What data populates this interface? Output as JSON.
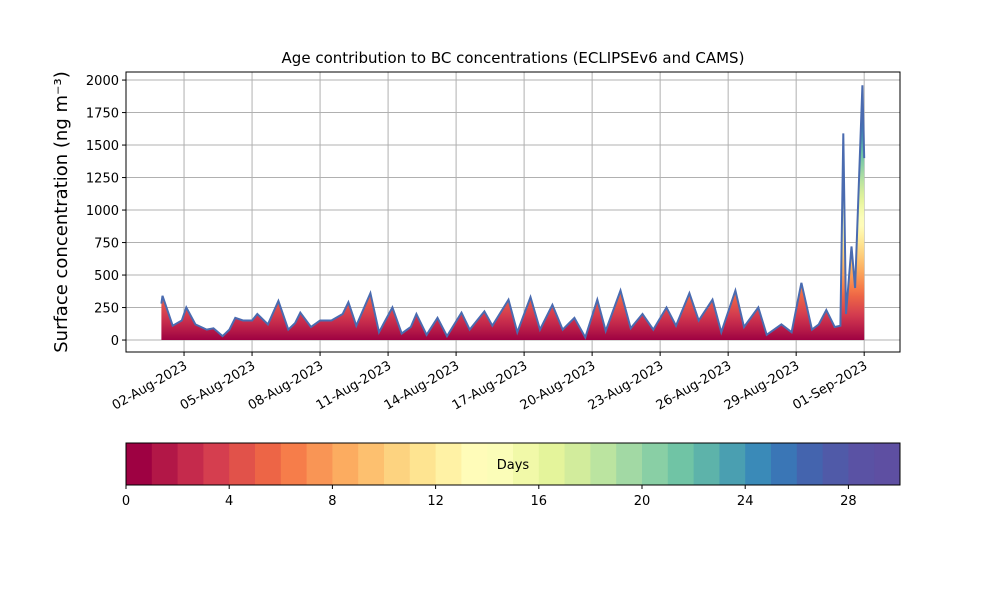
{
  "chart_data": [
    {
      "type": "area",
      "title": "Age contribution to BC concentrations (ECLIPSEv6 and CAMS)",
      "ylabel": "Surface concentration (ng m⁻³)",
      "color": "#4a6bb0",
      "x": [
        1.0,
        1.05,
        1.5,
        1.9,
        2.1,
        2.5,
        3.0,
        3.3,
        3.7,
        4.0,
        4.26,
        4.6,
        5.0,
        5.23,
        5.7,
        6.16,
        6.6,
        6.9,
        7.13,
        7.6,
        8.0,
        8.5,
        9.0,
        9.25,
        9.6,
        10.22,
        10.6,
        11.19,
        11.6,
        12.0,
        12.25,
        12.7,
        13.18,
        13.6,
        14.24,
        14.6,
        15.25,
        15.6,
        16.31,
        16.7,
        17.28,
        17.7,
        18.25,
        18.7,
        19.22,
        19.7,
        20.23,
        20.6,
        21.25,
        21.7,
        22.22,
        22.7,
        23.28,
        23.7,
        24.29,
        24.7,
        25.31,
        25.7,
        26.32,
        26.7,
        27.33,
        27.7,
        28.35,
        28.8,
        29.23,
        29.7,
        30.0,
        30.33,
        30.7,
        30.95,
        31.08,
        31.2,
        31.44,
        31.6,
        31.92,
        32.0
      ],
      "values": [
        280,
        340,
        110,
        150,
        250,
        120,
        80,
        90,
        30,
        80,
        170,
        150,
        150,
        200,
        120,
        300,
        80,
        130,
        210,
        100,
        150,
        150,
        200,
        290,
        110,
        360,
        60,
        250,
        50,
        100,
        200,
        40,
        170,
        30,
        210,
        80,
        220,
        110,
        310,
        60,
        330,
        80,
        270,
        80,
        170,
        20,
        310,
        70,
        380,
        90,
        200,
        80,
        250,
        110,
        360,
        150,
        310,
        60,
        380,
        100,
        250,
        40,
        120,
        60,
        440,
        80,
        120,
        230,
        100,
        110,
        1590,
        200,
        720,
        400,
        1960,
        1400
      ],
      "xlim": [
        -0.56,
        33.58
      ],
      "xticks": [
        {
          "value": 2,
          "label": "02-Aug-2023"
        },
        {
          "value": 5,
          "label": "05-Aug-2023"
        },
        {
          "value": 8,
          "label": "08-Aug-2023"
        },
        {
          "value": 11,
          "label": "11-Aug-2023"
        },
        {
          "value": 14,
          "label": "14-Aug-2023"
        },
        {
          "value": 17,
          "label": "17-Aug-2023"
        },
        {
          "value": 20,
          "label": "20-Aug-2023"
        },
        {
          "value": 23,
          "label": "23-Aug-2023"
        },
        {
          "value": 26,
          "label": "26-Aug-2023"
        },
        {
          "value": 29,
          "label": "29-Aug-2023"
        },
        {
          "value": 32,
          "label": "01-Sep-2023"
        }
      ],
      "ylim": [
        -92,
        2062
      ],
      "yticks": [
        0,
        250,
        500,
        750,
        1000,
        1250,
        1500,
        1750,
        2000
      ],
      "grid": true
    },
    {
      "type": "colorbar",
      "xlabel": "Days",
      "colors": [
        "#9e0142",
        "#b21747",
        "#c52a4c",
        "#d53e4f",
        "#e1524a",
        "#ed6546",
        "#f67d4a",
        "#f99555",
        "#fcac60",
        "#fdc06f",
        "#fdd380",
        "#fee491",
        "#fff2a5",
        "#fffcb9",
        "#fbfdb8",
        "#f1f9a8",
        "#e4f49b",
        "#d2ec9c",
        "#bbe4a0",
        "#a2d9a4",
        "#89cfa5",
        "#70c4a5",
        "#5db3aa",
        "#4a9fb1",
        "#3a8ab8",
        "#3a76b6",
        "#4464ae",
        "#505aa8",
        "#5a52a4",
        "#5e4fa2"
      ],
      "xlim": [
        0,
        30
      ],
      "xticks": [
        0,
        4,
        8,
        12,
        16,
        20,
        24,
        28
      ]
    }
  ]
}
